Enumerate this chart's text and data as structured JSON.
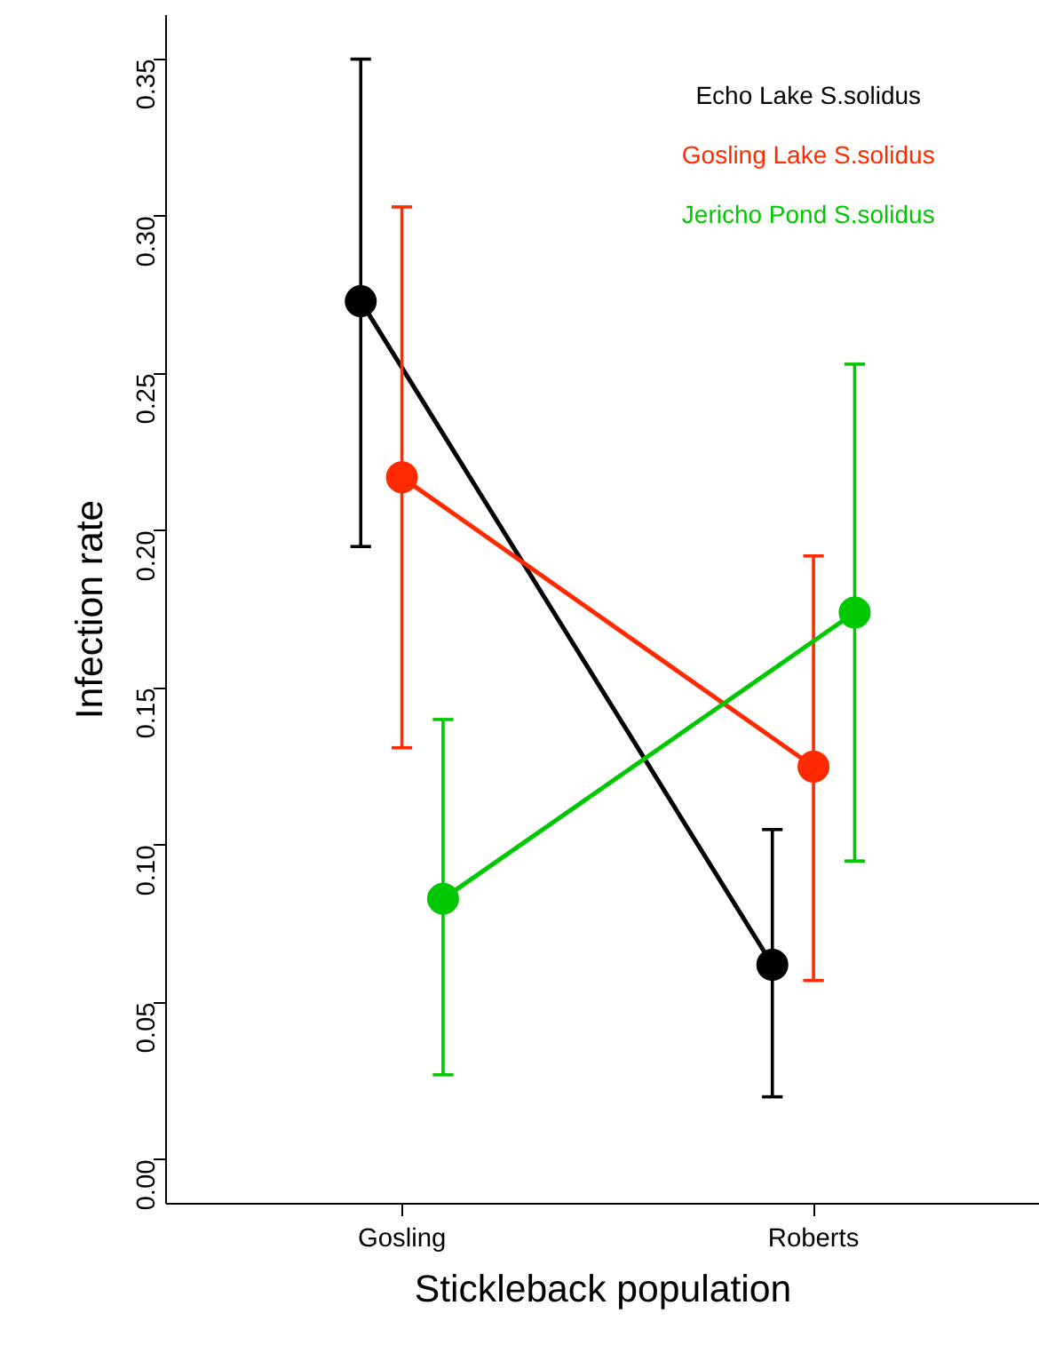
{
  "chart_data": {
    "type": "line",
    "xlabel": "Stickleback population",
    "ylabel": "Infection rate",
    "categories": [
      "Gosling",
      "Roberts"
    ],
    "series": [
      {
        "name": "Echo Lake S.solidus",
        "color": "#000000",
        "values": [
          0.273,
          0.062
        ],
        "errors": [
          [
            0.195,
            0.35
          ],
          [
            0.02,
            0.105
          ]
        ]
      },
      {
        "name": "Gosling Lake S.solidus",
        "color": "#ff2a00",
        "values": [
          0.217,
          0.125
        ],
        "errors": [
          [
            0.131,
            0.303
          ],
          [
            0.057,
            0.192
          ]
        ]
      },
      {
        "name": "Jericho Pond S.solidus",
        "color": "#00c800",
        "values": [
          0.083,
          0.174
        ],
        "errors": [
          [
            0.027,
            0.14
          ],
          [
            0.095,
            0.253
          ]
        ]
      }
    ],
    "ylim": [
      -0.014,
      0.364
    ],
    "yticks": [
      {
        "value": 0,
        "label": "0.00"
      },
      0.05,
      {
        "value": 0.1,
        "label": "0.10"
      },
      0.15,
      {
        "value": 0.2,
        "label": "0.20"
      },
      0.25,
      {
        "value": 0.3,
        "label": "0.30"
      },
      0.35
    ],
    "marker": "circle",
    "line_style": "solid",
    "legend": "top right",
    "grid": false
  }
}
